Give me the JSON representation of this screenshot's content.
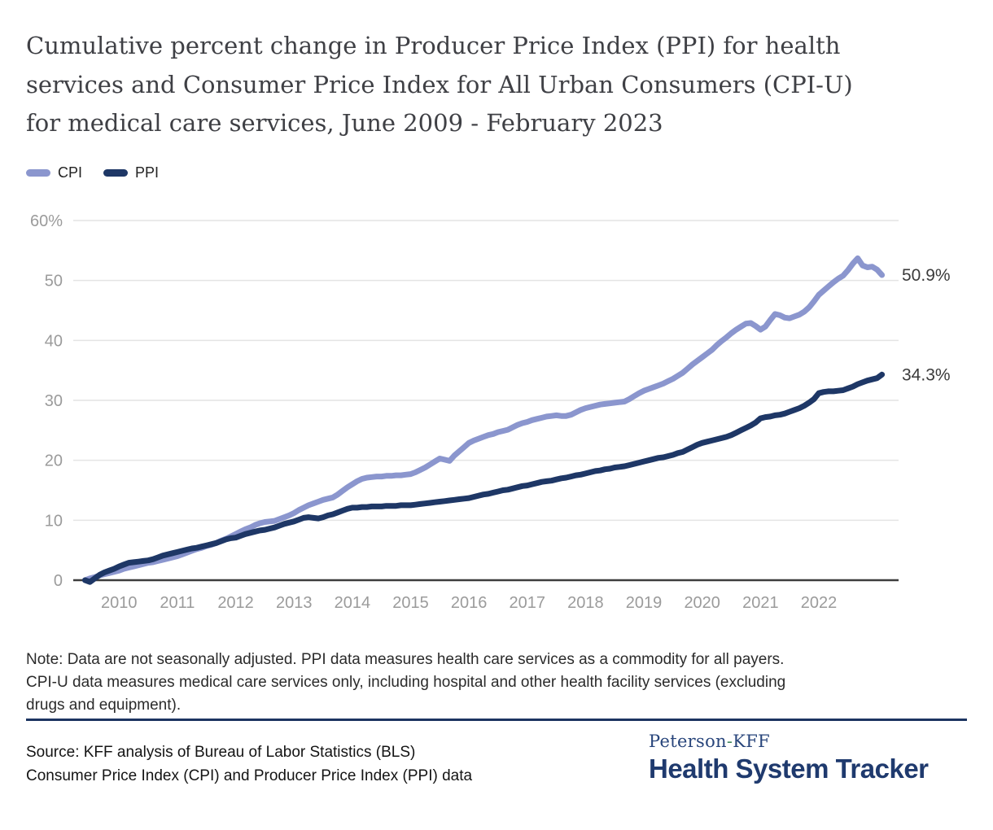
{
  "title_lines": [
    "Cumulative percent change in Producer Price Index (PPI) for health",
    "services and Consumer Price Index for All Urban Consumers (CPI-U)",
    "for medical care services, June 2009 - February 2023"
  ],
  "legend": [
    {
      "label": "CPI",
      "color": "#8b96ce"
    },
    {
      "label": "PPI",
      "color": "#1e3766"
    }
  ],
  "chart_data": {
    "type": "line",
    "x_start": "2009-06",
    "x_end": "2023-02",
    "x_unit": "month",
    "x_ticks": [
      "2010",
      "2011",
      "2012",
      "2013",
      "2014",
      "2015",
      "2016",
      "2017",
      "2018",
      "2019",
      "2020",
      "2021",
      "2022"
    ],
    "y_ticks": [
      "60%",
      "50",
      "40",
      "30",
      "20",
      "10",
      "0"
    ],
    "y_tick_values": [
      60,
      50,
      40,
      30,
      20,
      10,
      0
    ],
    "ylim": [
      0,
      60
    ],
    "grid": "horizontal",
    "legend_position": "top-left",
    "colors": {
      "gridline": "#e4e4e4",
      "axis": "#3d3d3d",
      "tick_label": "#9b9b9b",
      "end_label": "#3b3b3b"
    },
    "series": [
      {
        "name": "CPI",
        "color": "#8b96ce",
        "end_label": "50.9%",
        "values": [
          0,
          0.3,
          0.5,
          0.8,
          1.0,
          1.2,
          1.4,
          1.6,
          1.9,
          2.1,
          2.3,
          2.5,
          2.7,
          2.9,
          3.0,
          3.2,
          3.4,
          3.6,
          3.8,
          4.0,
          4.3,
          4.6,
          4.9,
          5.2,
          5.4,
          5.7,
          5.9,
          6.2,
          6.6,
          6.9,
          7.3,
          7.7,
          8.1,
          8.5,
          8.8,
          9.2,
          9.5,
          9.7,
          9.8,
          9.9,
          10.2,
          10.5,
          10.8,
          11.2,
          11.7,
          12.1,
          12.5,
          12.8,
          13.1,
          13.4,
          13.6,
          13.8,
          14.3,
          14.9,
          15.5,
          16.0,
          16.5,
          16.9,
          17.1,
          17.2,
          17.3,
          17.3,
          17.4,
          17.4,
          17.5,
          17.5,
          17.6,
          17.7,
          18.0,
          18.4,
          18.8,
          19.3,
          19.8,
          20.3,
          20.1,
          19.9,
          20.8,
          21.5,
          22.2,
          22.9,
          23.3,
          23.6,
          23.9,
          24.2,
          24.4,
          24.7,
          24.9,
          25.1,
          25.5,
          25.9,
          26.2,
          26.4,
          26.7,
          26.9,
          27.1,
          27.3,
          27.4,
          27.5,
          27.4,
          27.4,
          27.6,
          28.0,
          28.4,
          28.7,
          28.9,
          29.1,
          29.3,
          29.4,
          29.5,
          29.6,
          29.7,
          29.8,
          30.2,
          30.7,
          31.2,
          31.6,
          31.9,
          32.2,
          32.5,
          32.8,
          33.2,
          33.6,
          34.1,
          34.6,
          35.3,
          36.0,
          36.6,
          37.2,
          37.8,
          38.4,
          39.2,
          39.9,
          40.5,
          41.2,
          41.8,
          42.3,
          42.8,
          42.9,
          42.4,
          41.8,
          42.3,
          43.4,
          44.4,
          44.2,
          43.8,
          43.7,
          44.0,
          44.3,
          44.8,
          45.5,
          46.5,
          47.6,
          48.3,
          49.0,
          49.7,
          50.3,
          50.8,
          51.7,
          52.8,
          53.7,
          52.5,
          52.2,
          52.3,
          51.8,
          50.9
        ]
      },
      {
        "name": "PPI",
        "color": "#1e3766",
        "end_label": "34.3%",
        "values": [
          0,
          -0.3,
          0.3,
          0.9,
          1.3,
          1.6,
          1.9,
          2.3,
          2.6,
          2.9,
          3.0,
          3.1,
          3.2,
          3.3,
          3.5,
          3.8,
          4.1,
          4.3,
          4.5,
          4.7,
          4.9,
          5.1,
          5.3,
          5.4,
          5.6,
          5.8,
          6.0,
          6.2,
          6.5,
          6.8,
          7.0,
          7.1,
          7.4,
          7.7,
          7.9,
          8.1,
          8.3,
          8.4,
          8.6,
          8.8,
          9.1,
          9.4,
          9.6,
          9.8,
          10.1,
          10.4,
          10.5,
          10.4,
          10.3,
          10.5,
          10.8,
          11.0,
          11.3,
          11.6,
          11.9,
          12.1,
          12.1,
          12.2,
          12.2,
          12.3,
          12.3,
          12.3,
          12.4,
          12.4,
          12.4,
          12.5,
          12.5,
          12.5,
          12.6,
          12.7,
          12.8,
          12.9,
          13.0,
          13.1,
          13.2,
          13.3,
          13.4,
          13.5,
          13.6,
          13.7,
          13.9,
          14.1,
          14.3,
          14.4,
          14.6,
          14.8,
          15.0,
          15.1,
          15.3,
          15.5,
          15.7,
          15.8,
          16.0,
          16.2,
          16.4,
          16.5,
          16.6,
          16.8,
          17.0,
          17.1,
          17.3,
          17.5,
          17.6,
          17.8,
          18.0,
          18.2,
          18.3,
          18.5,
          18.6,
          18.8,
          18.9,
          19.0,
          19.2,
          19.4,
          19.6,
          19.8,
          20.0,
          20.2,
          20.4,
          20.5,
          20.7,
          20.9,
          21.2,
          21.4,
          21.8,
          22.2,
          22.6,
          22.9,
          23.1,
          23.3,
          23.5,
          23.7,
          23.9,
          24.2,
          24.6,
          25.0,
          25.4,
          25.8,
          26.3,
          27.0,
          27.2,
          27.3,
          27.5,
          27.6,
          27.8,
          28.1,
          28.4,
          28.7,
          29.1,
          29.6,
          30.2,
          31.2,
          31.4,
          31.5,
          31.5,
          31.6,
          31.7,
          32.0,
          32.3,
          32.7,
          33.0,
          33.3,
          33.5,
          33.7,
          34.3
        ]
      }
    ]
  },
  "note_lines": [
    "Note: Data are not seasonally adjusted. PPI data measures health care services as a commodity for all payers.",
    "CPI-U data measures medical care services only, including hospital and other health facility services (excluding",
    "drugs and equipment)."
  ],
  "source_lines": [
    "Source: KFF analysis of Bureau of Labor Statistics (BLS)",
    "Consumer Price Index (CPI) and Producer Price Index (PPI) data"
  ],
  "logo": {
    "part1": "Peterson",
    "separator": "-",
    "part2": "KFF",
    "title": "Health System Tracker"
  }
}
